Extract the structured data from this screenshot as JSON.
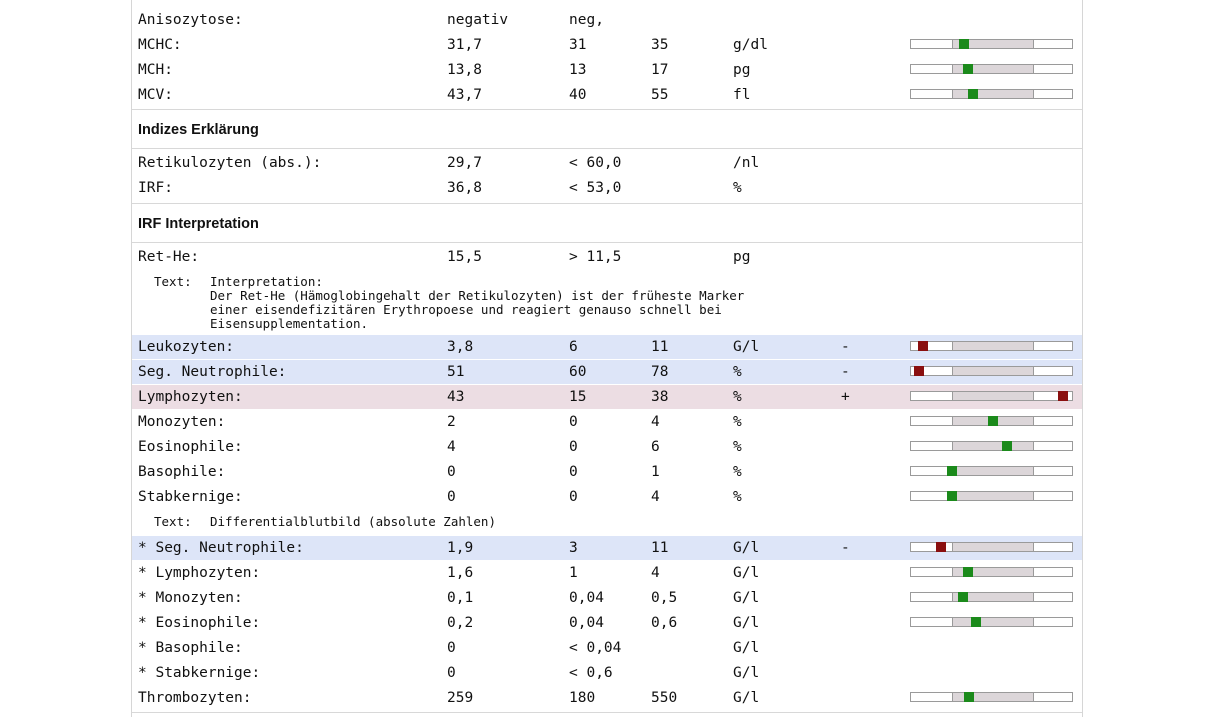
{
  "top_rows": [
    {
      "name": "Anisozytose:",
      "value": "negativ",
      "low": "neg,",
      "high": "",
      "unit": "",
      "flag": "",
      "marker": null,
      "status": "none"
    },
    {
      "name": "MCHC:",
      "value": "31,7",
      "low": "31",
      "high": "35",
      "unit": "g/dl",
      "flag": "",
      "marker": 0.15,
      "status": "ok"
    },
    {
      "name": "MCH:",
      "value": "13,8",
      "low": "13",
      "high": "17",
      "unit": "pg",
      "flag": "",
      "marker": 0.2,
      "status": "ok"
    },
    {
      "name": "MCV:",
      "value": "43,7",
      "low": "40",
      "high": "55",
      "unit": "fl",
      "flag": "",
      "marker": 0.25,
      "status": "ok"
    }
  ],
  "section1_title": "Indizes Erklärung",
  "mid_rows": [
    {
      "name": "Retikulozyten (abs.):",
      "value": "29,7",
      "low": "< 60,0",
      "high": "",
      "unit": "/nl",
      "flag": "",
      "marker": null,
      "status": "none"
    },
    {
      "name": "IRF:",
      "value": "36,8",
      "low": "< 53,0",
      "high": "",
      "unit": "%",
      "flag": "",
      "marker": null,
      "status": "none"
    }
  ],
  "section2_title": "IRF Interpretation",
  "rethe_row": {
    "name": "Ret-He:",
    "value": "15,5",
    "low": "> 11,5",
    "high": "",
    "unit": "pg",
    "flag": "",
    "marker": null,
    "status": "none"
  },
  "interpretation": {
    "label": "Text:",
    "lines": [
      "Interpretation:",
      "Der Ret-He (Hämoglobingehalt der Retikulozyten) ist der früheste Marker",
      "einer eisendefizitären Erythropoese und reagiert genauso schnell bei",
      "Eisensupplementation."
    ]
  },
  "diff_rows": [
    {
      "name": "Leukozyten:",
      "value": "3,8",
      "low": "6",
      "high": "11",
      "unit": "G/l",
      "flag": "-",
      "marker": -0.35,
      "status": "bad",
      "highlight": "blue"
    },
    {
      "name": "Seg. Neutrophile:",
      "value": "51",
      "low": "60",
      "high": "78",
      "unit": "%",
      "flag": "-",
      "marker": -0.4,
      "status": "bad",
      "highlight": "blue"
    },
    {
      "name": "Lymphozyten:",
      "value": "43",
      "low": "15",
      "high": "38",
      "unit": "%",
      "flag": "+",
      "marker": 1.35,
      "status": "bad",
      "highlight": "pink"
    },
    {
      "name": "Monozyten:",
      "value": "2",
      "low": "0",
      "high": "4",
      "unit": "%",
      "flag": "",
      "marker": 0.5,
      "status": "ok",
      "highlight": ""
    },
    {
      "name": "Eosinophile:",
      "value": "4",
      "low": "0",
      "high": "6",
      "unit": "%",
      "flag": "",
      "marker": 0.67,
      "status": "ok",
      "highlight": ""
    },
    {
      "name": "Basophile:",
      "value": "0",
      "low": "0",
      "high": "1",
      "unit": "%",
      "flag": "",
      "marker": 0.0,
      "status": "ok",
      "highlight": ""
    },
    {
      "name": "Stabkernige:",
      "value": "0",
      "low": "0",
      "high": "4",
      "unit": "%",
      "flag": "",
      "marker": 0.0,
      "status": "ok",
      "highlight": ""
    }
  ],
  "diff_text": {
    "label": "Text:",
    "body": "Differentialblutbild (absolute Zahlen)"
  },
  "abs_rows": [
    {
      "name": "* Seg. Neutrophile:",
      "value": "1,9",
      "low": "3",
      "high": "11",
      "unit": "G/l",
      "flag": "-",
      "marker": -0.14,
      "status": "bad",
      "highlight": "blue"
    },
    {
      "name": "* Lymphozyten:",
      "value": "1,6",
      "low": "1",
      "high": "4",
      "unit": "G/l",
      "flag": "",
      "marker": 0.2,
      "status": "ok",
      "highlight": ""
    },
    {
      "name": "* Monozyten:",
      "value": "0,1",
      "low": "0,04",
      "high": "0,5",
      "unit": "G/l",
      "flag": "",
      "marker": 0.13,
      "status": "ok",
      "highlight": ""
    },
    {
      "name": "* Eosinophile:",
      "value": "0,2",
      "low": "0,04",
      "high": "0,6",
      "unit": "G/l",
      "flag": "",
      "marker": 0.29,
      "status": "ok",
      "highlight": ""
    },
    {
      "name": "* Basophile:",
      "value": "0",
      "low": "< 0,04",
      "high": "",
      "unit": "G/l",
      "flag": "",
      "marker": null,
      "status": "none",
      "highlight": ""
    },
    {
      "name": "* Stabkernige:",
      "value": "0",
      "low": "< 0,6",
      "high": "",
      "unit": "G/l",
      "flag": "",
      "marker": null,
      "status": "none",
      "highlight": ""
    },
    {
      "name": "Thrombozyten:",
      "value": "259",
      "low": "180",
      "high": "550",
      "unit": "G/l",
      "flag": "",
      "marker": 0.21,
      "status": "ok",
      "highlight": ""
    }
  ]
}
